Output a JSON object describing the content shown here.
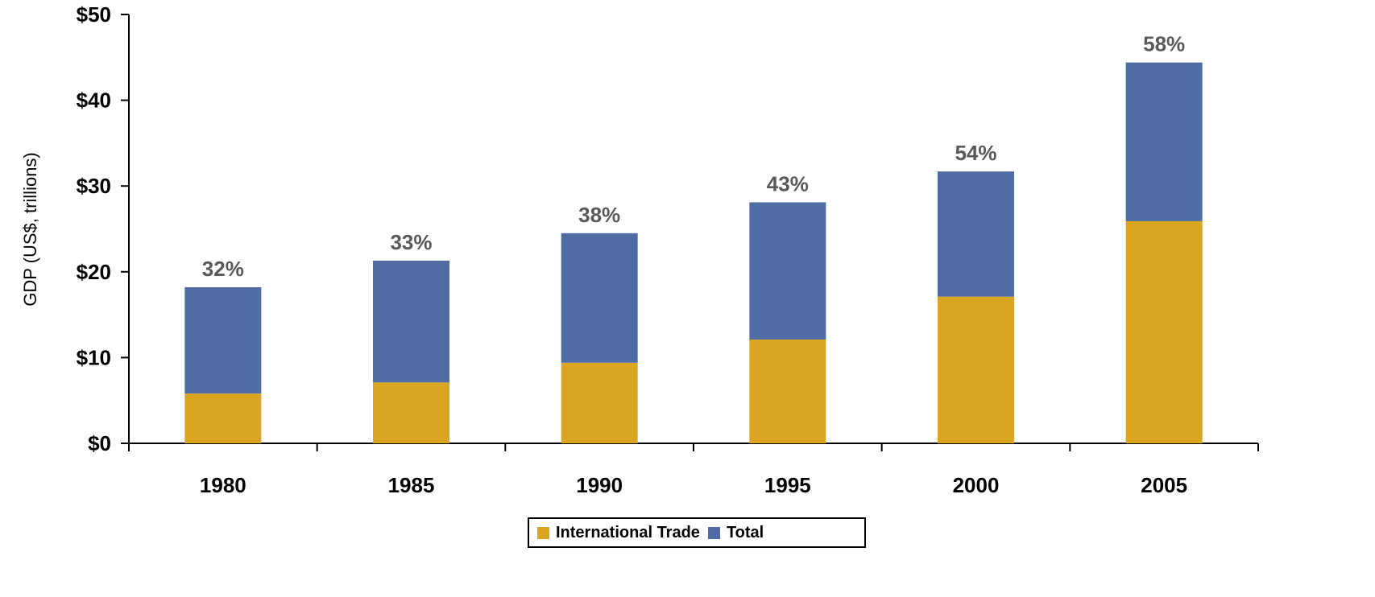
{
  "chart_data": {
    "type": "bar",
    "stacked": true,
    "categories": [
      "1980",
      "1985",
      "1990",
      "1995",
      "2000",
      "2005"
    ],
    "series": [
      {
        "name": "International Trade",
        "values": [
          5.8,
          7.1,
          9.4,
          12.1,
          17.1,
          25.9
        ],
        "color": "#DAA520"
      },
      {
        "name": "Total",
        "values": [
          12.4,
          14.2,
          15.1,
          16.0,
          14.6,
          18.5
        ],
        "color": "#4F6DA4"
      }
    ],
    "totals": [
      18.2,
      21.3,
      24.5,
      28.1,
      31.7,
      44.4
    ],
    "data_labels": [
      "32%",
      "33%",
      "38%",
      "43%",
      "54%",
      "58%"
    ],
    "title": "",
    "xlabel": "",
    "ylabel": "GDP (US$, trillions)",
    "ylim": [
      0,
      50
    ],
    "y_ticks": [
      0,
      10,
      20,
      30,
      40,
      50
    ],
    "y_tick_labels": [
      "$0",
      "$10",
      "$20",
      "$30",
      "$40",
      "$50"
    ],
    "grid": false,
    "legend_position": "bottom"
  },
  "legend": {
    "items": [
      {
        "label": "International Trade",
        "color": "#DAA520"
      },
      {
        "label": "Total",
        "color": "#4F6DA4"
      }
    ]
  }
}
